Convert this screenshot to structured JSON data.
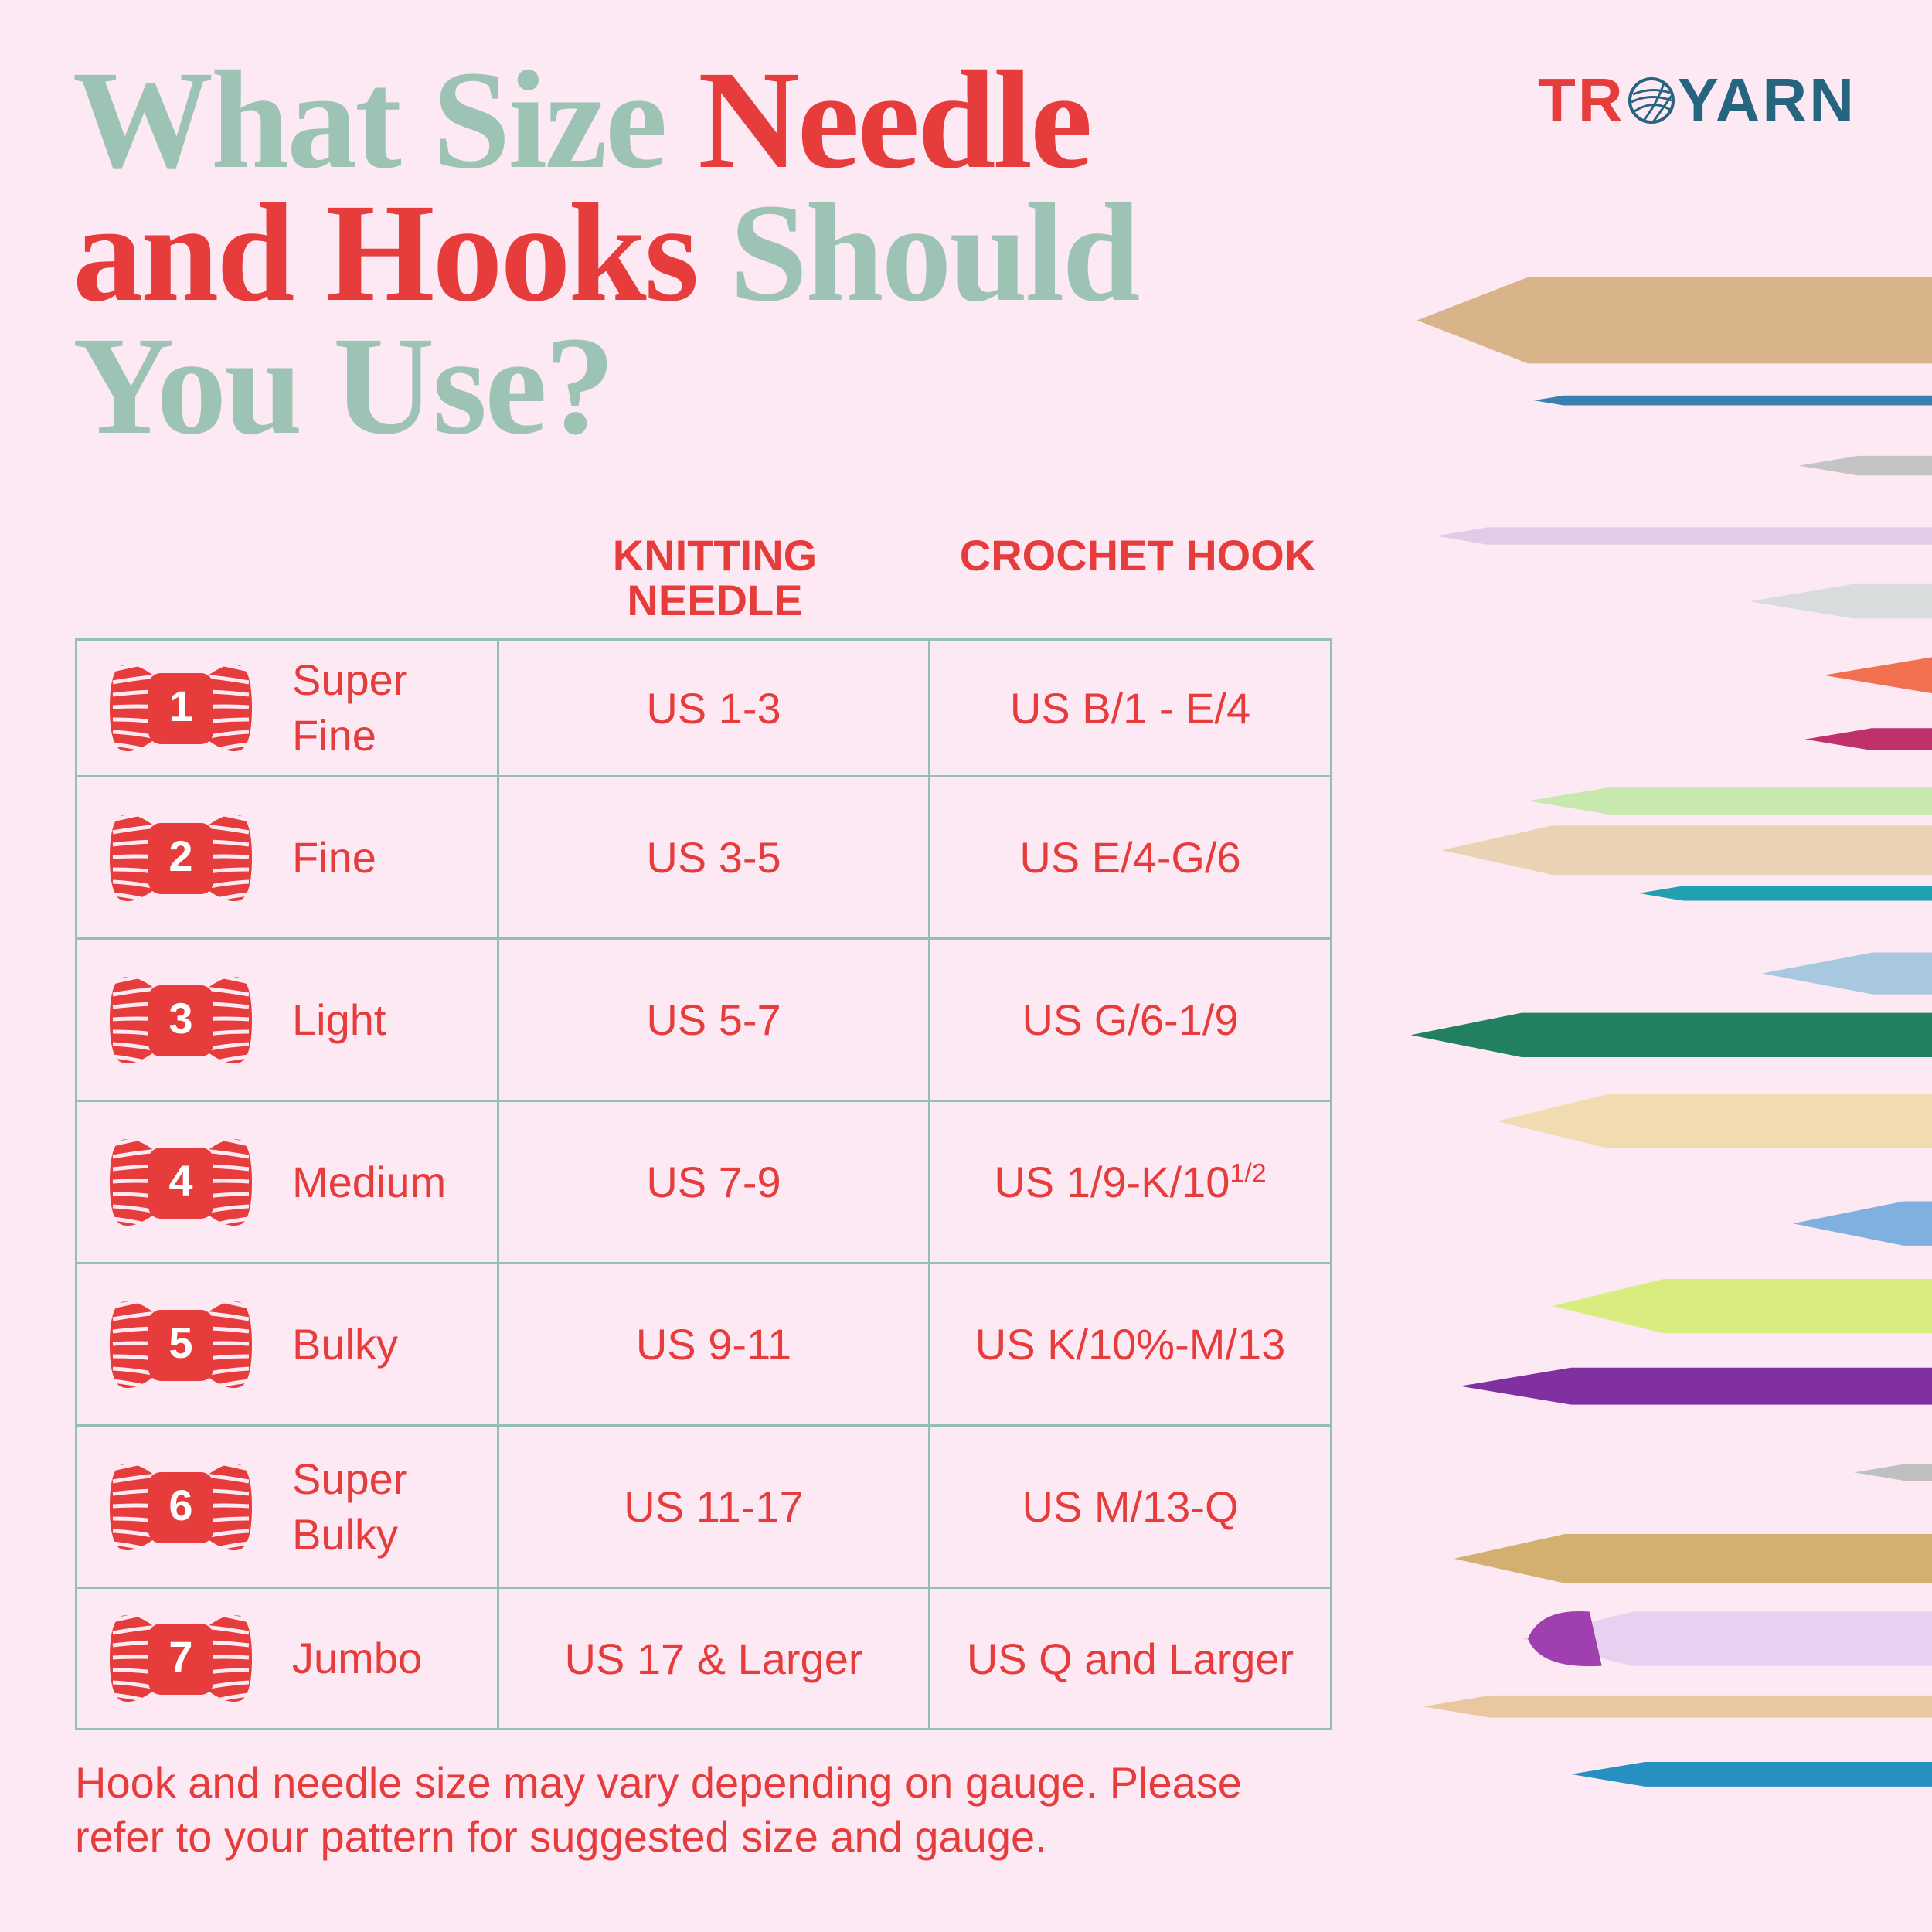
{
  "title": {
    "line1_a": "What Size ",
    "line1_b": "Needle",
    "line2_a": "and Hooks ",
    "line2_b": "Should",
    "line3": "You Use?"
  },
  "logo": {
    "text_left": "TR",
    "text_right": "YARN",
    "icon": "yarn-ball-icon"
  },
  "colors": {
    "red": "#e63c3c",
    "sage": "#9cc3b4",
    "background": "#fde9f3",
    "logo_blue": "#266580"
  },
  "table": {
    "headers": {
      "knitting": "KNITTING NEEDLE",
      "crochet": "CROCHET HOOK"
    },
    "rows": [
      {
        "number": "1",
        "weight": "Super Fine",
        "knitting": "US 1-3",
        "crochet": "US B/1 - E/4"
      },
      {
        "number": "2",
        "weight": "Fine",
        "knitting": "US 3-5",
        "crochet": "US E/4-G/6"
      },
      {
        "number": "3",
        "weight": "Light",
        "knitting": "US 5-7",
        "crochet": "US G/6-1/9"
      },
      {
        "number": "4",
        "weight": "Medium",
        "knitting": "US 7-9",
        "crochet": "US 1/9-K/10",
        "crochet_sup": "1/2"
      },
      {
        "number": "5",
        "weight": "Bulky",
        "knitting": "US 9-11",
        "crochet": "US K/10%-M/13"
      },
      {
        "number": "6",
        "weight": "Super Bulky",
        "knitting": "US 11-17",
        "crochet": "US M/13-Q"
      },
      {
        "number": "7",
        "weight": "Jumbo",
        "knitting": "US 17 & Larger",
        "crochet": "US Q and Larger"
      }
    ]
  },
  "footer": "Hook and needle size may vary depending on gauge. Please refer to your pattern for suggested size and gauge."
}
